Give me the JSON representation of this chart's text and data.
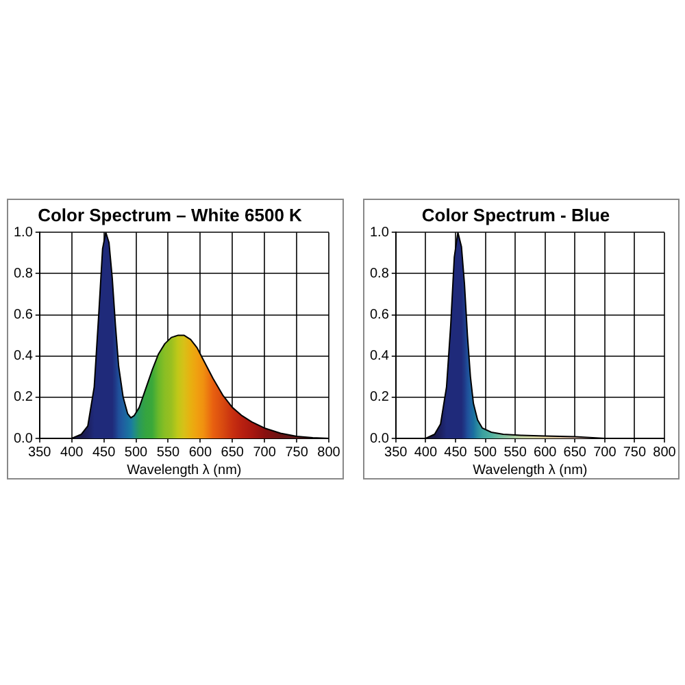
{
  "chart_data": [
    {
      "type": "area",
      "title": "Color Spectrum – White 6500 K",
      "xlabel": "Wavelength λ (nm)",
      "xlim": [
        350,
        800
      ],
      "xticks": [
        350,
        400,
        450,
        500,
        550,
        600,
        650,
        700,
        750,
        800
      ],
      "ylim": [
        0,
        1
      ],
      "yticks": [
        {
          "value": 0,
          "label": "0.0"
        },
        {
          "value": 0.2,
          "label": "0.2"
        },
        {
          "value": 0.4,
          "label": "0.4"
        },
        {
          "value": 0.6,
          "label": "0.6"
        },
        {
          "value": 0.8,
          "label": "0.8"
        },
        {
          "value": 1,
          "label": "1.0"
        }
      ],
      "grid": true,
      "legend": false,
      "series": [
        {
          "x": [
            400,
            415,
            425,
            435,
            442,
            448,
            453,
            458,
            463,
            468,
            473,
            480,
            487,
            492,
            497,
            505,
            515,
            525,
            535,
            545,
            555,
            565,
            575,
            585,
            595,
            605,
            620,
            635,
            650,
            665,
            680,
            700,
            725,
            750,
            775,
            800
          ],
          "values": [
            0,
            0.02,
            0.06,
            0.25,
            0.6,
            0.92,
            1.0,
            0.95,
            0.78,
            0.55,
            0.35,
            0.2,
            0.12,
            0.1,
            0.11,
            0.15,
            0.24,
            0.33,
            0.41,
            0.46,
            0.49,
            0.5,
            0.5,
            0.48,
            0.44,
            0.38,
            0.29,
            0.21,
            0.15,
            0.11,
            0.08,
            0.05,
            0.025,
            0.01,
            0.003,
            0
          ],
          "colors": [
            "#1a1a40",
            "#1a1a4a",
            "#1c2060",
            "#1f2a7a",
            "#1f2a7a",
            "#1f2a7a",
            "#1f2a7a",
            "#1f2a7a",
            "#1f2a7a",
            "#1f3a88",
            "#1f4f9a",
            "#1f5fa0",
            "#1a6fa0",
            "#1a7aa0",
            "#1f8a8a",
            "#2a9a5a",
            "#35a440",
            "#3aa83a",
            "#6ab82a",
            "#8abe24",
            "#9ac020",
            "#c0c818",
            "#d8c018",
            "#e8b010",
            "#f0a010",
            "#f09010",
            "#e86010",
            "#d84a10",
            "#c83010",
            "#b82010",
            "#a81810",
            "#8a1010",
            "#6a1414",
            "#5a1a1a",
            "#4a1c1c",
            "#3a2020"
          ]
        }
      ]
    },
    {
      "type": "area",
      "title": "Color Spectrum - Blue",
      "xlabel": "Wavelength λ (nm)",
      "xlim": [
        350,
        800
      ],
      "xticks": [
        350,
        400,
        450,
        500,
        550,
        600,
        650,
        700,
        750,
        800
      ],
      "ylim": [
        0,
        1
      ],
      "yticks": [
        {
          "value": 0,
          "label": "0.0"
        },
        {
          "value": 0.2,
          "label": "0.2"
        },
        {
          "value": 0.4,
          "label": "0.4"
        },
        {
          "value": 0.6,
          "label": "0.6"
        },
        {
          "value": 0.8,
          "label": "0.8"
        },
        {
          "value": 1,
          "label": "1.0"
        }
      ],
      "grid": true,
      "legend": false,
      "series": [
        {
          "x": [
            400,
            415,
            425,
            435,
            442,
            448,
            454,
            460,
            465,
            470,
            475,
            480,
            487,
            495,
            510,
            530,
            560,
            600,
            650,
            700
          ],
          "values": [
            0,
            0.02,
            0.07,
            0.25,
            0.55,
            0.88,
            1.0,
            0.93,
            0.75,
            0.5,
            0.3,
            0.17,
            0.09,
            0.05,
            0.03,
            0.02,
            0.015,
            0.012,
            0.008,
            0
          ],
          "colors": [
            "#1a1a40",
            "#1a1a4a",
            "#1c2060",
            "#1f2a7a",
            "#1f2a7a",
            "#1f2a7a",
            "#1f2a7a",
            "#1f2a7a",
            "#1f3a88",
            "#1f4f9a",
            "#1f5fa0",
            "#1a6fa0",
            "#2a8aa0",
            "#3aa0a0",
            "#50b0a0",
            "#80c0a0",
            "#c0d0a0",
            "#e0d0a0",
            "#d0b0a0",
            "#c0a0a0"
          ]
        }
      ]
    }
  ]
}
